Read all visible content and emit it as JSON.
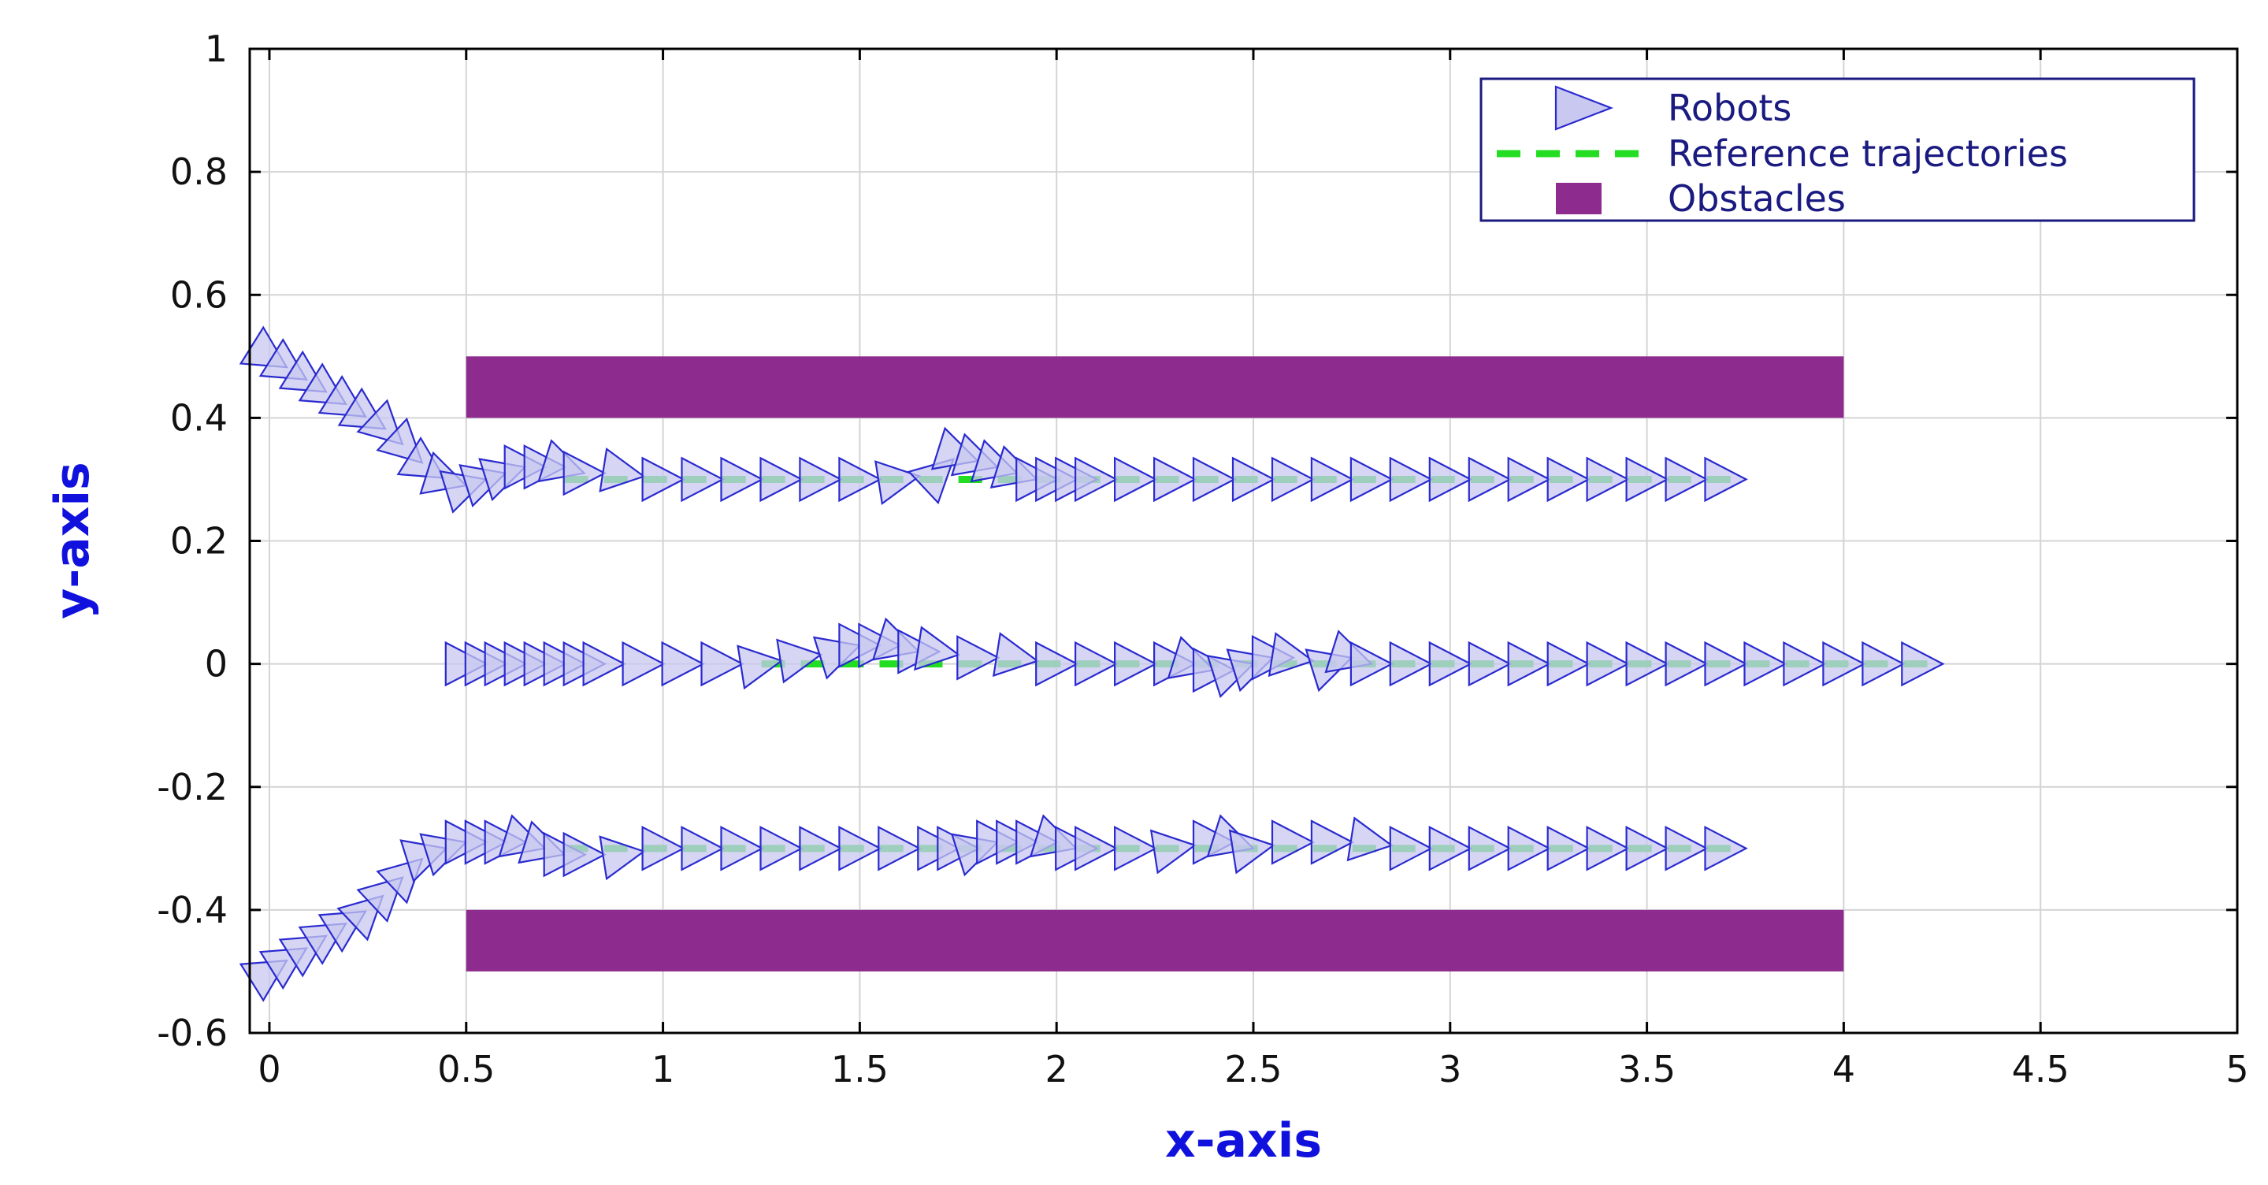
{
  "chart_data": {
    "type": "scatter",
    "xlabel": "x-axis",
    "ylabel": "y-axis",
    "xlim": [
      -0.05,
      5
    ],
    "ylim": [
      -0.6,
      1
    ],
    "xticks": [
      "0",
      "0.5",
      "1",
      "1.5",
      "2",
      "2.5",
      "3",
      "3.5",
      "4",
      "4.5",
      "5"
    ],
    "yticks": [
      "1",
      "0.8",
      "0.6",
      "0.4",
      "0.2",
      "0",
      "-0.2",
      "-0.4",
      "-0.6"
    ],
    "grid": true,
    "legend_position": "top-right",
    "legend": [
      "Robots",
      "Reference trajectories",
      "Obstacles"
    ],
    "colors": {
      "robot_edge": "#2a2ad0",
      "robot_fill": "#c8c8f0",
      "reference": "#22dd22",
      "obstacle": "#8e2b8e",
      "grid": "#d4d4d4",
      "axis": "#000000"
    },
    "obstacles": [
      {
        "x": [
          0.5,
          4.0
        ],
        "y": [
          0.4,
          0.5
        ]
      },
      {
        "x": [
          0.5,
          4.0
        ],
        "y": [
          -0.5,
          -0.4
        ]
      }
    ],
    "reference_trajectories": [
      {
        "x": [
          0.75,
          3.75
        ],
        "y": [
          0.3,
          0.3
        ]
      },
      {
        "x": [
          1.25,
          4.25
        ],
        "y": [
          0.0,
          0.0
        ]
      },
      {
        "x": [
          0.75,
          3.75
        ],
        "y": [
          -0.3,
          -0.3
        ]
      }
    ],
    "series": [
      {
        "x": [
          0.0,
          0.05,
          0.1,
          0.15,
          0.2,
          0.25,
          0.3,
          0.35,
          0.4,
          0.45,
          0.5,
          0.55,
          0.6,
          0.65,
          0.7,
          0.75,
          0.8,
          0.9,
          1.0,
          1.1,
          1.2,
          1.3,
          1.4,
          1.5,
          1.6,
          1.7,
          1.75,
          1.8,
          1.85,
          1.9,
          1.95,
          2.0,
          2.05,
          2.1,
          2.2,
          2.3,
          2.4,
          2.5,
          2.6,
          2.7,
          2.8,
          2.9,
          3.0,
          3.1,
          3.2,
          3.3,
          3.4,
          3.5,
          3.6,
          3.7
        ],
        "y": [
          0.5,
          0.48,
          0.46,
          0.44,
          0.42,
          0.4,
          0.38,
          0.35,
          0.32,
          0.3,
          0.29,
          0.3,
          0.31,
          0.32,
          0.32,
          0.32,
          0.31,
          0.31,
          0.3,
          0.3,
          0.3,
          0.3,
          0.3,
          0.3,
          0.3,
          0.31,
          0.34,
          0.33,
          0.32,
          0.31,
          0.3,
          0.3,
          0.3,
          0.3,
          0.3,
          0.3,
          0.3,
          0.3,
          0.3,
          0.3,
          0.3,
          0.3,
          0.3,
          0.3,
          0.3,
          0.3,
          0.3,
          0.3,
          0.3,
          0.3
        ]
      },
      {
        "x": [
          0.5,
          0.55,
          0.6,
          0.65,
          0.7,
          0.75,
          0.8,
          0.85,
          0.95,
          1.05,
          1.15,
          1.25,
          1.35,
          1.45,
          1.5,
          1.55,
          1.6,
          1.65,
          1.7,
          1.8,
          1.9,
          2.0,
          2.1,
          2.2,
          2.3,
          2.35,
          2.4,
          2.45,
          2.5,
          2.55,
          2.6,
          2.7,
          2.75,
          2.8,
          2.9,
          3.0,
          3.1,
          3.2,
          3.3,
          3.4,
          3.5,
          3.6,
          3.7,
          3.8,
          3.9,
          4.0,
          4.1,
          4.2
        ],
        "y": [
          0.0,
          0.0,
          0.0,
          0.0,
          0.0,
          0.0,
          0.0,
          0.0,
          0.0,
          0.0,
          0.0,
          0.0,
          0.01,
          0.02,
          0.03,
          0.03,
          0.03,
          0.02,
          0.02,
          0.01,
          0.01,
          0.0,
          0.0,
          0.0,
          0.0,
          0.0,
          -0.01,
          -0.01,
          0.0,
          0.01,
          0.01,
          0.0,
          0.01,
          0.0,
          0.0,
          0.0,
          0.0,
          0.0,
          0.0,
          0.0,
          0.0,
          0.0,
          0.0,
          0.0,
          0.0,
          0.0,
          0.0,
          0.0
        ]
      },
      {
        "x": [
          0.0,
          0.05,
          0.1,
          0.15,
          0.2,
          0.25,
          0.3,
          0.35,
          0.4,
          0.45,
          0.5,
          0.55,
          0.6,
          0.65,
          0.7,
          0.75,
          0.8,
          0.9,
          1.0,
          1.1,
          1.2,
          1.3,
          1.4,
          1.5,
          1.6,
          1.7,
          1.75,
          1.8,
          1.85,
          1.9,
          1.95,
          2.0,
          2.05,
          2.1,
          2.2,
          2.3,
          2.4,
          2.45,
          2.5,
          2.6,
          2.7,
          2.8,
          2.9,
          3.0,
          3.1,
          3.2,
          3.3,
          3.4,
          3.5,
          3.6,
          3.7
        ],
        "y": [
          -0.5,
          -0.48,
          -0.46,
          -0.44,
          -0.42,
          -0.4,
          -0.37,
          -0.34,
          -0.31,
          -0.3,
          -0.29,
          -0.29,
          -0.29,
          -0.29,
          -0.3,
          -0.31,
          -0.31,
          -0.31,
          -0.3,
          -0.3,
          -0.3,
          -0.3,
          -0.3,
          -0.3,
          -0.3,
          -0.3,
          -0.3,
          -0.3,
          -0.29,
          -0.29,
          -0.29,
          -0.29,
          -0.3,
          -0.3,
          -0.3,
          -0.3,
          -0.29,
          -0.29,
          -0.3,
          -0.29,
          -0.29,
          -0.29,
          -0.3,
          -0.3,
          -0.3,
          -0.3,
          -0.3,
          -0.3,
          -0.3,
          -0.3,
          -0.3
        ]
      }
    ]
  }
}
